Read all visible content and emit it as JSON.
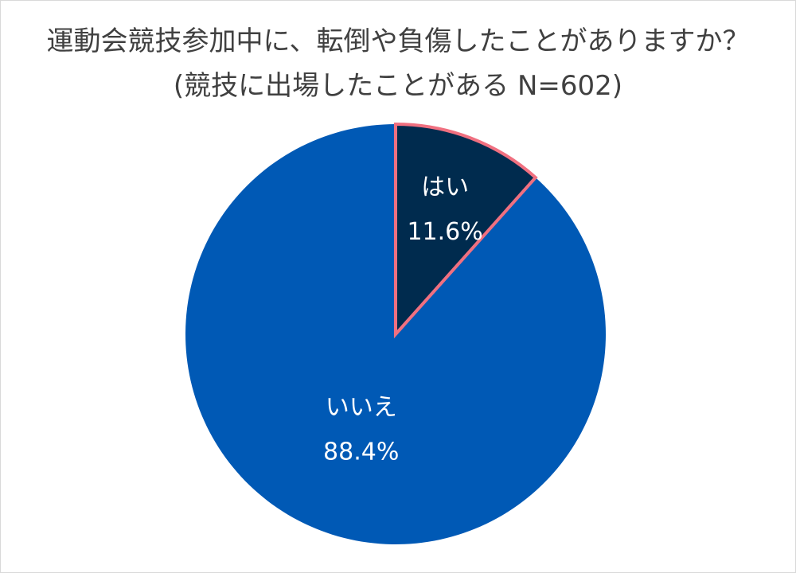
{
  "chart_data": {
    "type": "pie",
    "title": "運動会競技参加中に、転倒や負傷したことがありますか？",
    "subtitle": "(競技に出場したことがある N=602)",
    "categories": [
      "はい",
      "いいえ"
    ],
    "values": [
      11.6,
      88.4
    ],
    "value_labels": [
      "11.6%",
      "88.4%"
    ],
    "colors": [
      "#002B4E",
      "#0059B5"
    ],
    "highlight_border_color": "#F07080",
    "legend": "none"
  }
}
